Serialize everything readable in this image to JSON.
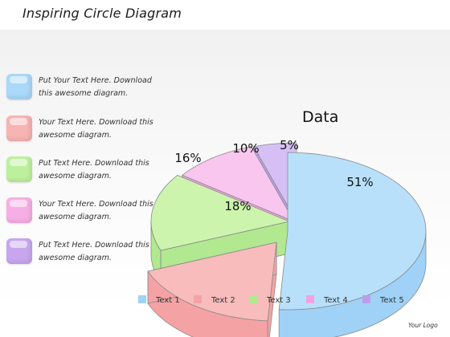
{
  "page": {
    "title": "Inspiring Circle Diagram",
    "logo": "Your Logo"
  },
  "text_items": [
    {
      "text": "Put Your Text Here. Download this awesome diagram.",
      "color": "#a9d8f8"
    },
    {
      "text": "Your Text Here. Download this awesome diagram.",
      "color": "#f8b3b3"
    },
    {
      "text": "Put Text Here. Download this awesome diagram.",
      "color": "#bdf09c"
    },
    {
      "text": "Your Text Here. Download this awesome diagram.",
      "color": "#f7aee4"
    },
    {
      "text": "Put Text Here. Download this awesome diagram.",
      "color": "#c8a6ee"
    }
  ],
  "chart_data": {
    "type": "pie",
    "title": "Data",
    "categories": [
      "Text 1",
      "Text 2",
      "Text 3",
      "Text 4",
      "Text 5"
    ],
    "values": [
      51,
      18,
      16,
      10,
      5
    ],
    "data_labels": [
      "51%",
      "18%",
      "16%",
      "10%",
      "5%"
    ],
    "colors": [
      "#b8e0fb",
      "#f8bcbc",
      "#ccf4ad",
      "#f8c6ee",
      "#d6bff4"
    ],
    "side_colors": [
      "#9fd2f6",
      "#f5a2a4",
      "#b1e890",
      "#f1a3e2",
      "#bd9de9"
    ],
    "three_d": true,
    "exploded": true,
    "legend_position": "bottom"
  }
}
